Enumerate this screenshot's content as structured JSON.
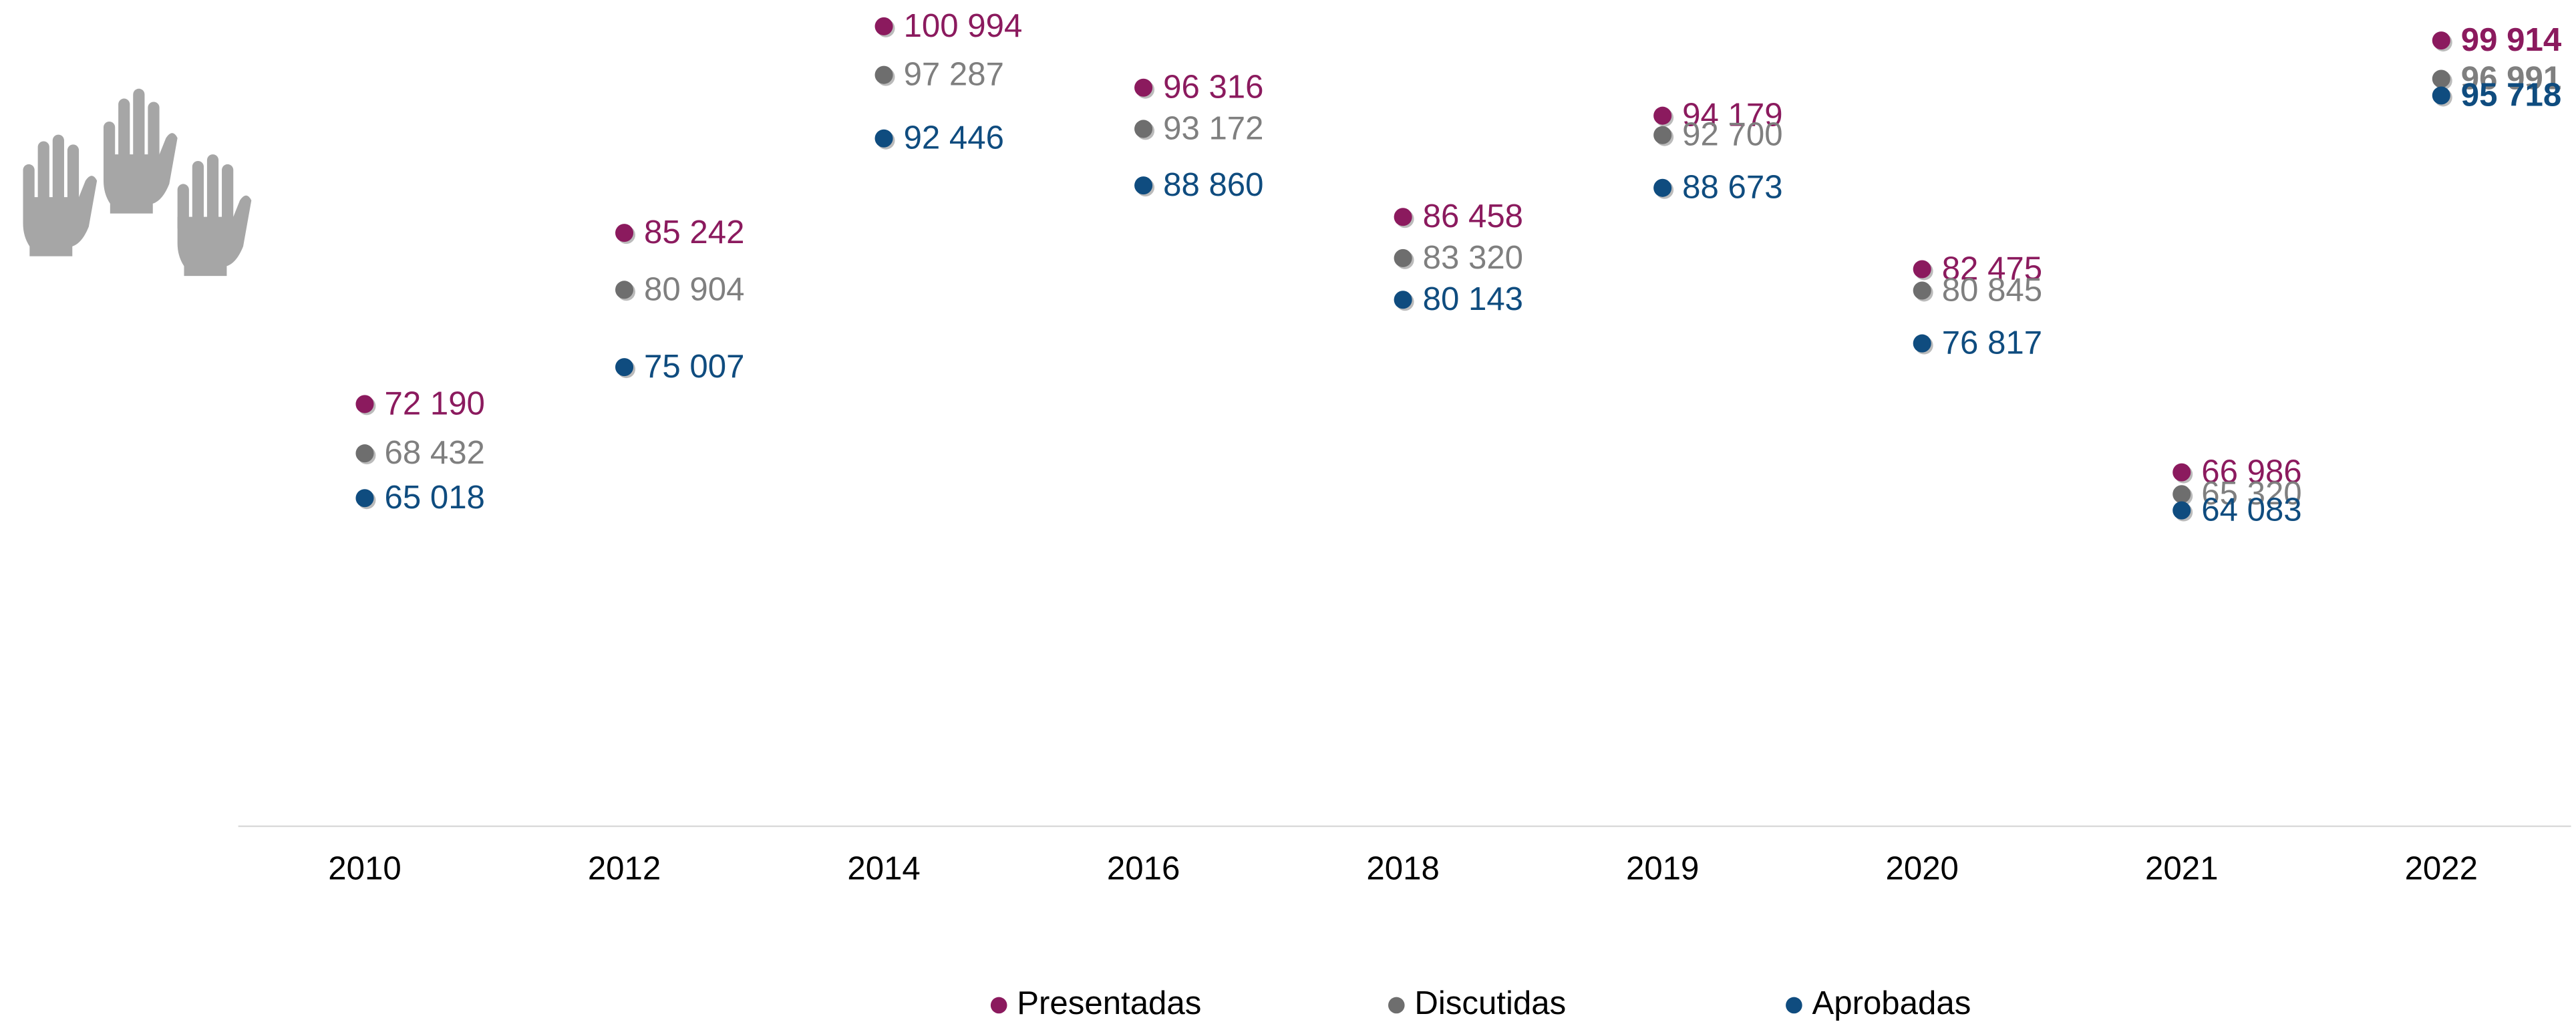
{
  "chart_data": {
    "type": "scatter",
    "categories": [
      "2010",
      "2012",
      "2014",
      "2016",
      "2018",
      "2019",
      "2020",
      "2021",
      "2022"
    ],
    "ylim": [
      40000,
      103000
    ],
    "legend": "bottom",
    "series": [
      {
        "name": "Presentadas",
        "color": "#8b1a5e",
        "values": [
          72190,
          85242,
          100994,
          96316,
          86458,
          94179,
          82475,
          66986,
          99914
        ],
        "value_labels": [
          "72 190",
          "85 242",
          "100 994",
          "96 316",
          "86 458",
          "94 179",
          "82 475",
          "66 986",
          "99 914"
        ]
      },
      {
        "name": "Discutidas",
        "color": "#6e6e6e",
        "values": [
          68432,
          80904,
          97287,
          93172,
          83320,
          92700,
          80845,
          65320,
          96991
        ],
        "value_labels": [
          "68 432",
          "80 904",
          "97 287",
          "93 172",
          "83 320",
          "92 700",
          "80 845",
          "65 320",
          "96 991"
        ]
      },
      {
        "name": "Aprobadas",
        "color": "#0f4c7f",
        "values": [
          65018,
          75007,
          92446,
          88860,
          80143,
          88673,
          76817,
          64083,
          95718
        ],
        "value_labels": [
          "65 018",
          "75 007",
          "92 446",
          "88 860",
          "80 143",
          "88 673",
          "76 817",
          "64 083",
          "95 718"
        ]
      }
    ]
  }
}
